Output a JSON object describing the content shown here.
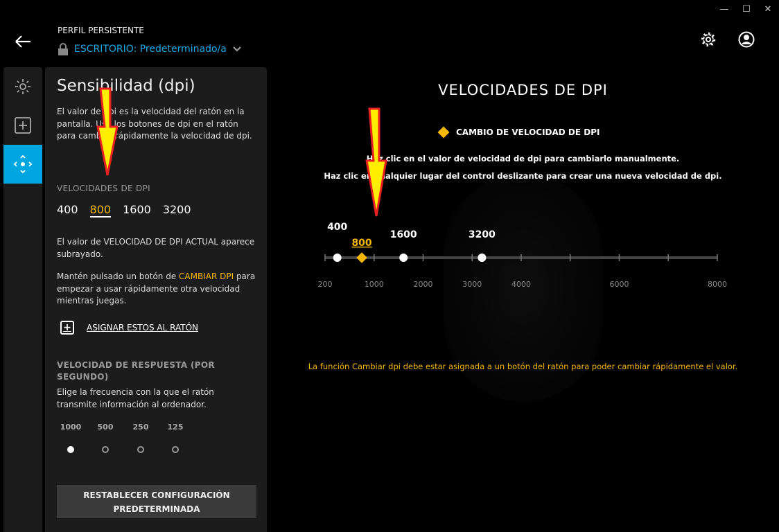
{
  "window": {
    "minimize": "—",
    "maximize": "☐",
    "close": "✕"
  },
  "header": {
    "profile_label": "PERFIL PERSISTENTE",
    "profile_name": "ESCRITORIO: Predeterminado/a",
    "accent": "#1aa9e6"
  },
  "nav": {
    "items": [
      {
        "name": "lighting",
        "active": false
      },
      {
        "name": "assignments",
        "active": false
      },
      {
        "name": "sensitivity",
        "active": true
      }
    ],
    "active_color": "#00a6e0"
  },
  "panel": {
    "title": "Sensibilidad (dpi)",
    "intro": "El valor de dpi es la velocidad del ratón en la pantalla. Usa los botones de dpi en el ratón para cambiar rápidamente la velocidad de dpi.",
    "dpi_section": "VELOCIDADES DE DPI",
    "dpi_values": [
      "400",
      "800",
      "1600",
      "3200"
    ],
    "current_dpi": "800",
    "current_note": "El valor de VELOCIDAD DE DPI ACTUAL aparece subrayado.",
    "shift_pre": "Mantén pulsado un botón de ",
    "shift_link": "CAMBIAR DPI",
    "shift_post": " para empezar a usar rápidamente otra velocidad mientras juegas.",
    "assign_label": "ASIGNAR ESTOS AL RATÓN",
    "rate_section": "VELOCIDAD DE RESPUESTA (POR SEGUNDO)",
    "rate_desc": "Elige la frecuencia con la que el ratón transmite información al ordenador.",
    "rates": [
      "1000",
      "500",
      "250",
      "125"
    ],
    "selected_rate": "1000",
    "reset_label": "RESTABLECER CONFIGURACIÓN PREDETERMINADA"
  },
  "main": {
    "title": "VELOCIDADES DE DPI",
    "legend": "CAMBIO DE VELOCIDAD DE DPI",
    "hint1": "Haz clic en el valor de velocidad de dpi para cambiarlo manualmente.",
    "hint2": "Haz clic en cualquier lugar del control deslizante para crear una nueva velocidad de dpi.",
    "warning": "La función Cambiar dpi debe estar asignada a un botón del ratón para poder cambiar rápidamente el valor.",
    "slider": {
      "scale_labels": [
        "200",
        "1000",
        "2000",
        "3000",
        "4000",
        "6000",
        "8000"
      ],
      "ticks": [
        200,
        1000,
        2000,
        3000,
        4000,
        5000,
        6000,
        7000,
        8000
      ],
      "points": [
        {
          "value": 400,
          "label": "400",
          "current": false,
          "shift": false
        },
        {
          "value": 800,
          "label": "800",
          "current": true,
          "shift": true
        },
        {
          "value": 1600,
          "label": "1600",
          "current": false,
          "shift": false
        },
        {
          "value": 3200,
          "label": "3200",
          "current": false,
          "shift": false
        }
      ]
    },
    "shift_color": "#f5b800"
  }
}
